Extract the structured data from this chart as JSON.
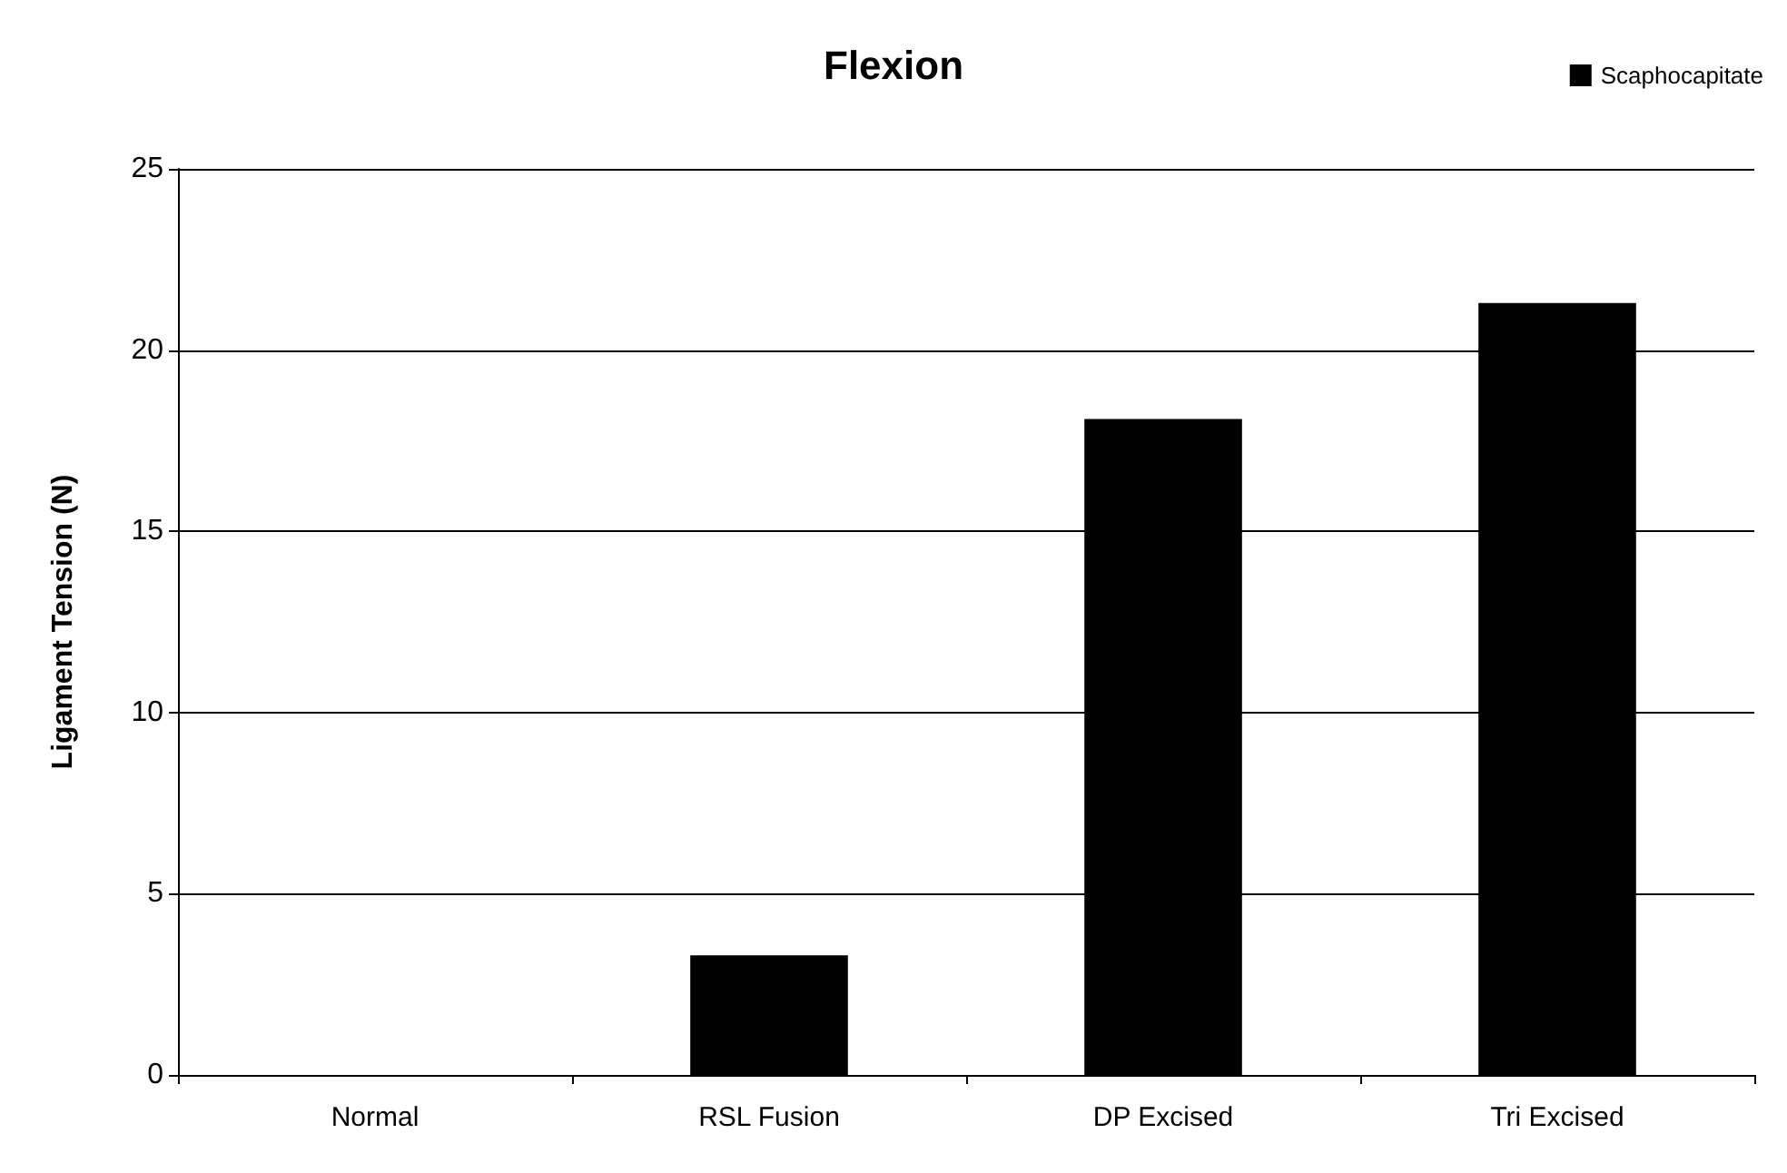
{
  "chart_data": {
    "type": "bar",
    "title": "Flexion",
    "ylabel": "Ligament Tension (N)",
    "categories": [
      "Normal",
      "RSL Fusion",
      "DP Excised",
      "Tri Excised"
    ],
    "series": [
      {
        "name": "Scaphocapitate",
        "color": "#000000",
        "values": [
          0,
          3.3,
          18.1,
          21.3
        ]
      }
    ],
    "ylim": [
      0,
      25
    ],
    "yticks": [
      0,
      5,
      10,
      15,
      20,
      25
    ],
    "grid": "y",
    "legend": "top right"
  }
}
